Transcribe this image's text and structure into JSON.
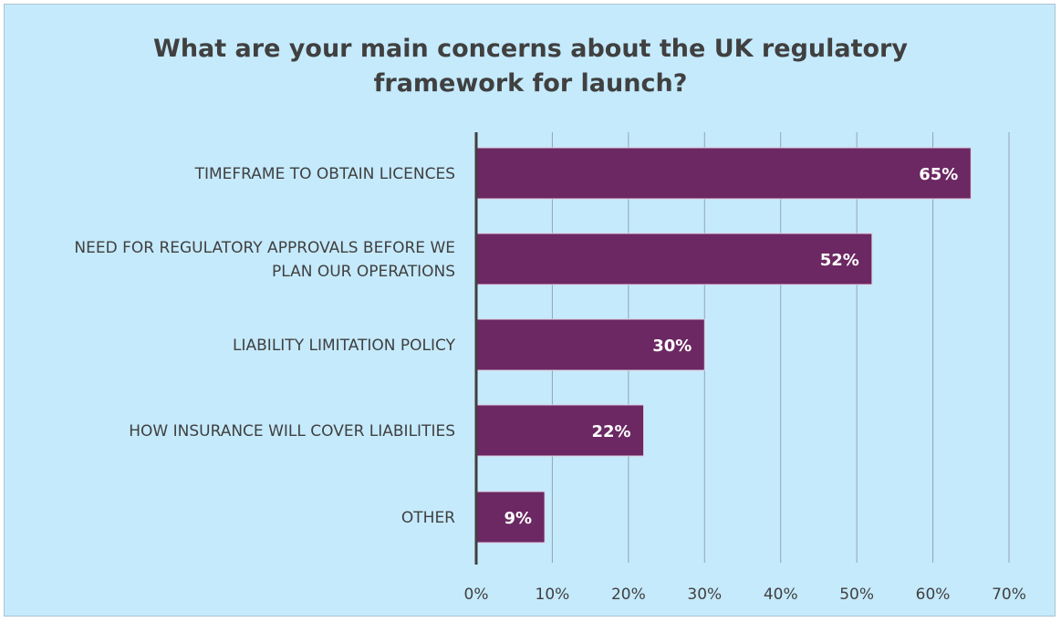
{
  "chart_data": {
    "type": "bar",
    "orientation": "horizontal",
    "title_lines": [
      "What are your main concerns about the UK regulatory",
      "framework for launch?"
    ],
    "categories": [
      [
        "TIMEFRAME TO OBTAIN LICENCES"
      ],
      [
        "NEED FOR REGULATORY APPROVALS BEFORE WE",
        "PLAN OUR OPERATIONS"
      ],
      [
        "LIABILITY LIMITATION POLICY"
      ],
      [
        "HOW INSURANCE WILL COVER LIABILITIES"
      ],
      [
        "OTHER"
      ]
    ],
    "values": [
      65,
      52,
      30,
      22,
      9
    ],
    "data_labels": [
      "65%",
      "52%",
      "30%",
      "22%",
      "9%"
    ],
    "xlim": [
      0,
      70
    ],
    "ticks": [
      0,
      10,
      20,
      30,
      40,
      50,
      60,
      70
    ],
    "tick_labels": [
      "0%",
      "10%",
      "20%",
      "30%",
      "40%",
      "50%",
      "60%",
      "70%"
    ],
    "grid": "vertical",
    "legend": "none",
    "colors": {
      "bar": "#6b2862",
      "bar_edge": "#e3cde0",
      "plot_background": "#c5eafc",
      "gridline": "#8fa6b2",
      "axis": "#404040",
      "text": "#404040",
      "value_label": "#ffffff"
    }
  }
}
